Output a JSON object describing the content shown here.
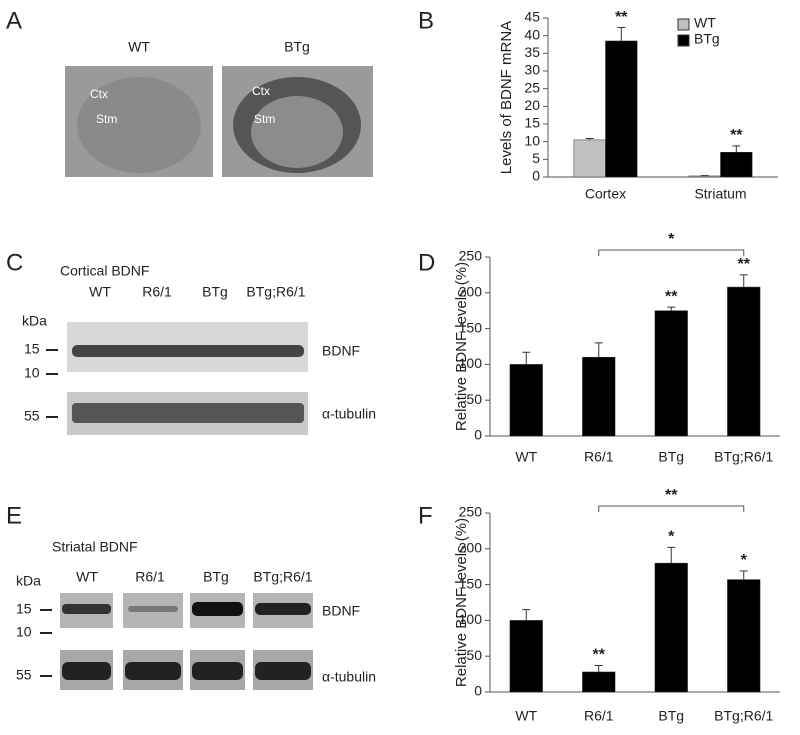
{
  "panels": [
    "A",
    "B",
    "C",
    "D",
    "E",
    "F"
  ],
  "brain": {
    "labels": [
      "WT",
      "BTg"
    ],
    "regions": [
      "Ctx",
      "Stm"
    ]
  },
  "blot_c": {
    "title": "Cortical BDNF",
    "unit": "kDa",
    "lanes": [
      "WT",
      "R6/1",
      "BTg",
      "BTg;R6/1"
    ],
    "markers": [
      "15",
      "10",
      "55"
    ],
    "bands": [
      "BDNF",
      "α-tubulin"
    ]
  },
  "blot_e": {
    "title": "Striatal BDNF",
    "unit": "kDa",
    "lanes": [
      "WT",
      "R6/1",
      "BTg",
      "BTg;R6/1"
    ],
    "markers": [
      "15",
      "10",
      "55"
    ],
    "bands": [
      "BDNF",
      "α-tubulin"
    ]
  },
  "chart_data": [
    {
      "type": "bar",
      "y_label": "Levels of BDNF mRNA",
      "categories": [
        "Cortex",
        "Striatum"
      ],
      "series": [
        {
          "name": "WT",
          "color": "#c0c0c0",
          "values": [
            10.5,
            0.3
          ],
          "errors": [
            0.4,
            0.1
          ],
          "significance": [
            null,
            null
          ]
        },
        {
          "name": "BTg",
          "color": "#000000",
          "values": [
            38.5,
            7
          ],
          "errors": [
            3.8,
            1.8
          ],
          "significance": [
            "**",
            "**"
          ]
        }
      ],
      "ylim": [
        0,
        45
      ],
      "yticks": [
        0,
        5,
        10,
        15,
        20,
        25,
        30,
        35,
        40,
        45
      ],
      "legend": "top-right"
    },
    {
      "type": "bar",
      "y_label": "Relative BDNF levels (%)",
      "categories": [
        "WT",
        "R6/1",
        "BTg",
        "BTg;R6/1"
      ],
      "series": [
        {
          "color": "#000000",
          "values": [
            100,
            110,
            175,
            208
          ],
          "errors": [
            17,
            20,
            5,
            17
          ],
          "significance": [
            null,
            null,
            "**",
            "**"
          ]
        }
      ],
      "bracket": {
        "from": "R6/1",
        "to": "BTg;R6/1",
        "label": "*"
      },
      "ylim": [
        0,
        250
      ],
      "yticks": [
        0,
        50,
        100,
        150,
        200,
        250
      ]
    },
    {
      "type": "bar",
      "y_label": "Relative BDNF levels (%)",
      "categories": [
        "WT",
        "R6/1",
        "BTg",
        "BTg;R6/1"
      ],
      "series": [
        {
          "color": "#000000",
          "values": [
            100,
            28,
            180,
            157
          ],
          "errors": [
            15,
            9,
            22,
            12
          ],
          "significance": [
            null,
            "**",
            "*",
            "*"
          ]
        }
      ],
      "bracket": {
        "from": "R6/1",
        "to": "BTg;R6/1",
        "label": "**"
      },
      "ylim": [
        0,
        250
      ],
      "yticks": [
        0,
        50,
        100,
        150,
        200,
        250
      ]
    }
  ]
}
